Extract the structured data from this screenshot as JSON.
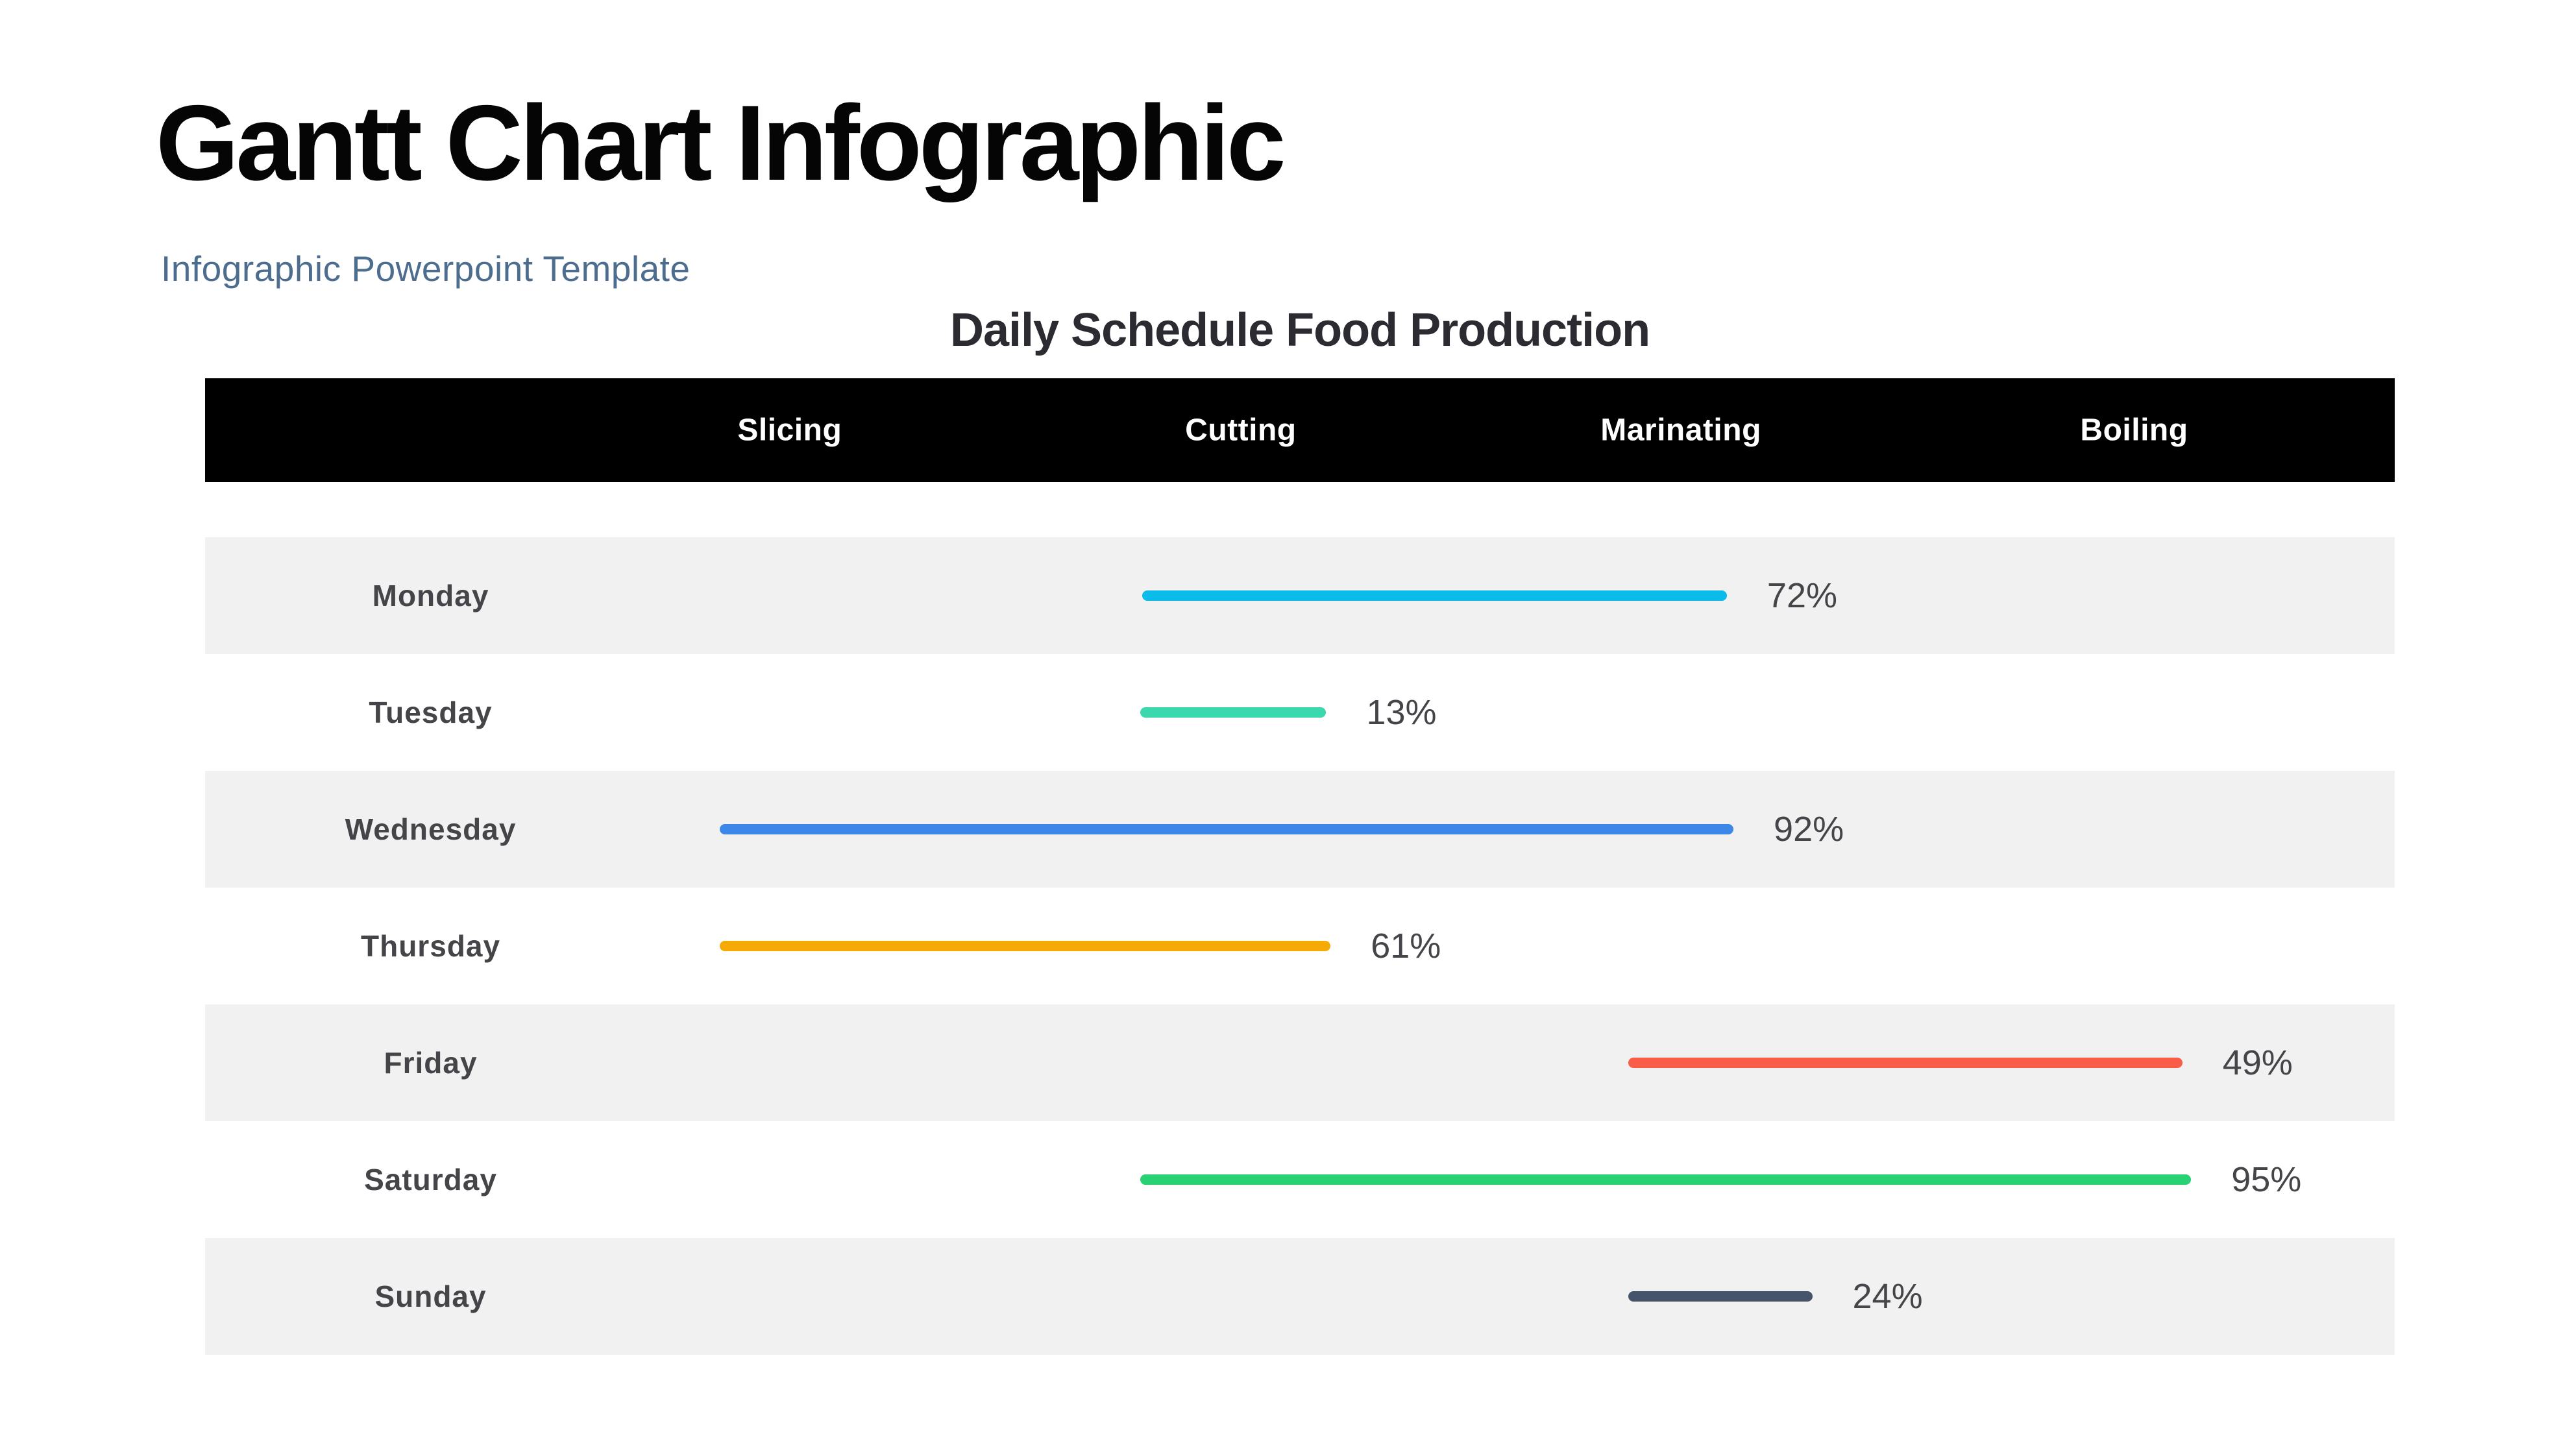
{
  "page": {
    "background": "#ffffff",
    "title": "Gantt Chart Infographic",
    "subtitle": "Infographic Powerpoint Template",
    "title_color": "#050505",
    "subtitle_color": "#4d6d8e"
  },
  "chart_data": {
    "type": "bar",
    "subtype": "gantt-progress",
    "title": "Daily Schedule Food Production",
    "title_color": "#2b2b31",
    "columns": [
      "Slicing",
      "Cutting",
      "Marinating",
      "Boiling"
    ],
    "column_centers_pct": [
      26.7,
      47.3,
      67.4,
      88.1
    ],
    "day_label_center_pct": 10.3,
    "header_bg": "#000000",
    "header_text_color": "#ffffff",
    "row_alt_color": "#f1f1f2",
    "row_color": "#ffffff",
    "text_color": "#454549",
    "legend_position": "none",
    "grid": false,
    "categories": [
      "Monday",
      "Tuesday",
      "Wednesday",
      "Thursday",
      "Friday",
      "Saturday",
      "Sunday"
    ],
    "values": [
      72,
      13,
      92,
      61,
      49,
      95,
      24
    ],
    "rows": [
      {
        "day": "Monday",
        "value": 72,
        "label": "72%",
        "color": "#0bbbe9",
        "start_pct": 42.8,
        "end_pct": 69.5,
        "shaded": true
      },
      {
        "day": "Tuesday",
        "value": 13,
        "label": "13%",
        "color": "#3bd8ad",
        "start_pct": 42.7,
        "end_pct": 51.2,
        "shaded": false
      },
      {
        "day": "Wednesday",
        "value": 92,
        "label": "92%",
        "color": "#3d87e9",
        "start_pct": 23.5,
        "end_pct": 69.8,
        "shaded": true
      },
      {
        "day": "Thursday",
        "value": 61,
        "label": "61%",
        "color": "#f5aa06",
        "start_pct": 23.5,
        "end_pct": 51.4,
        "shaded": false
      },
      {
        "day": "Friday",
        "value": 49,
        "label": "49%",
        "color": "#f95c47",
        "start_pct": 65.0,
        "end_pct": 90.3,
        "shaded": true
      },
      {
        "day": "Saturday",
        "value": 95,
        "label": "95%",
        "color": "#29d173",
        "start_pct": 42.7,
        "end_pct": 90.7,
        "shaded": false
      },
      {
        "day": "Sunday",
        "value": 24,
        "label": "24%",
        "color": "#45546a",
        "start_pct": 65.0,
        "end_pct": 73.4,
        "shaded": true
      }
    ]
  }
}
